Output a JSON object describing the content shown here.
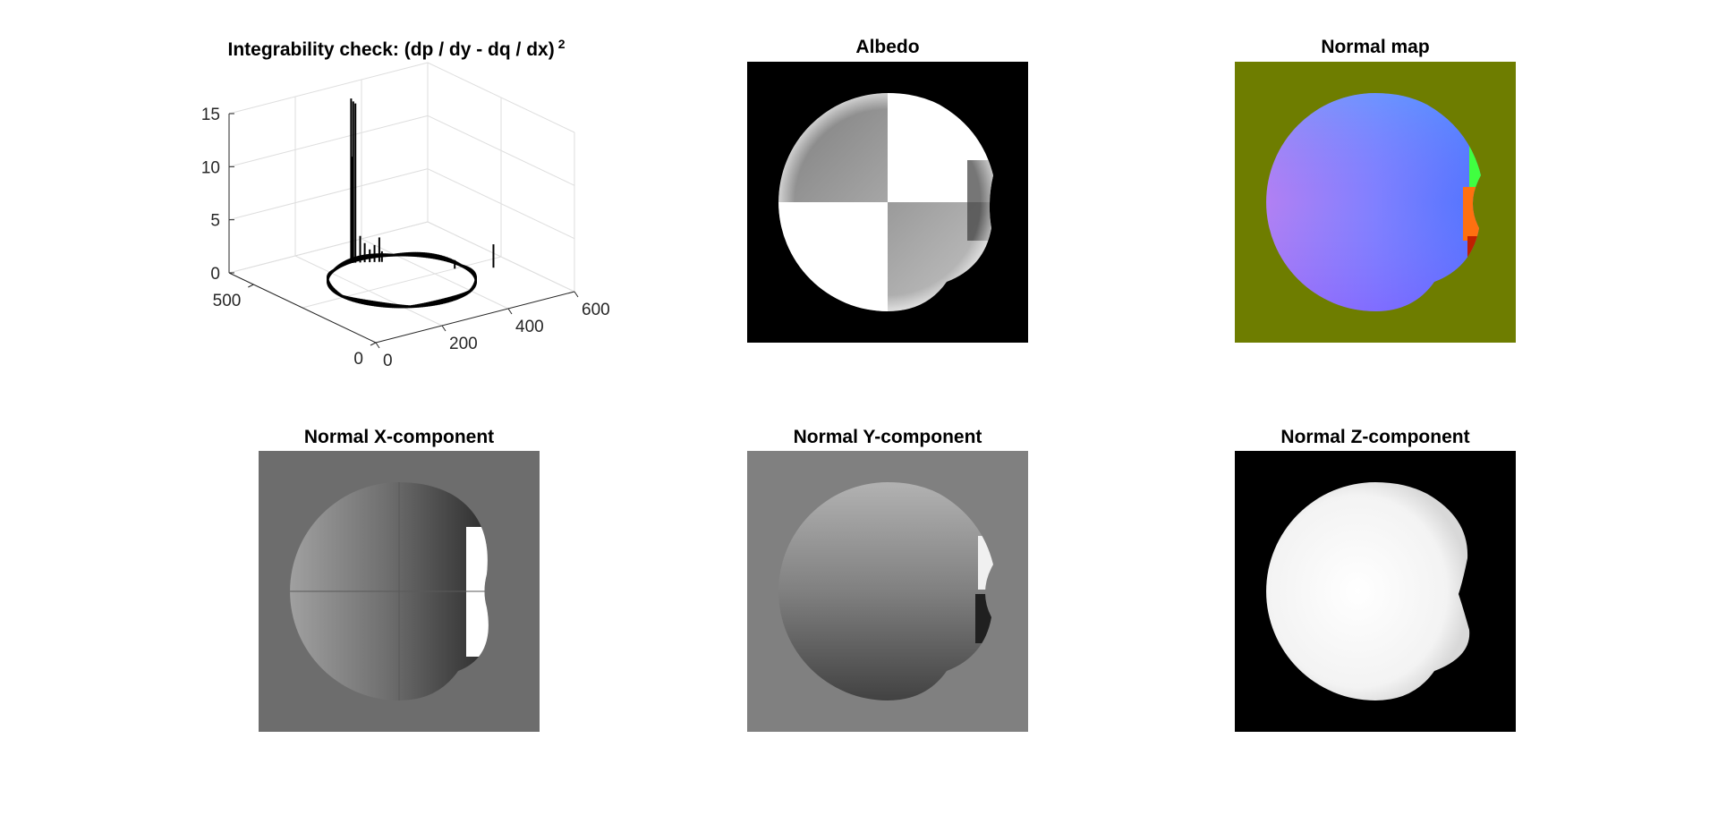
{
  "figure": {
    "panels": [
      {
        "id": "integrability",
        "title": "Integrability check: (dp / dy - dq / dx)",
        "title_superscript": "2"
      },
      {
        "id": "albedo",
        "title": "Albedo"
      },
      {
        "id": "normal_map",
        "title": "Normal map"
      },
      {
        "id": "normal_x",
        "title": "Normal X-component"
      },
      {
        "id": "normal_y",
        "title": "Normal Y-component"
      },
      {
        "id": "normal_z",
        "title": "Normal Z-component"
      }
    ]
  },
  "chart_data": {
    "type": "bar3",
    "title": "Integrability check: (dp / dy - dq / dx) 2",
    "xlabel": "",
    "ylabel": "",
    "zlabel": "",
    "x_ticks": [
      "0",
      "200",
      "400",
      "600"
    ],
    "y_ticks": [
      "0",
      "500"
    ],
    "z_ticks": [
      "0",
      "5",
      "10",
      "15"
    ],
    "xlim": [
      0,
      600
    ],
    "ylim": [
      0,
      600
    ],
    "zlim": [
      0,
      15
    ],
    "grid": true,
    "spikes": [
      {
        "x": 280,
        "y": 480,
        "z": 15.5
      },
      {
        "x": 285,
        "y": 478,
        "z": 15.2
      },
      {
        "x": 290,
        "y": 476,
        "z": 15.0
      },
      {
        "x": 283,
        "y": 479,
        "z": 10.0
      },
      {
        "x": 300,
        "y": 470,
        "z": 2.5
      },
      {
        "x": 310,
        "y": 465,
        "z": 1.8
      },
      {
        "x": 320,
        "y": 458,
        "z": 1.2
      },
      {
        "x": 330,
        "y": 452,
        "z": 1.6
      },
      {
        "x": 340,
        "y": 446,
        "z": 2.3
      },
      {
        "x": 345,
        "y": 442,
        "z": 1.0
      },
      {
        "x": 460,
        "y": 300,
        "z": 0.8
      },
      {
        "x": 540,
        "y": 250,
        "z": 2.2
      }
    ]
  },
  "colors": {
    "albedo_bg": "#000000",
    "normal_map_bg": "#6e7d00",
    "normal_x_bg": "#6d6d6d",
    "normal_y_bg": "#808080",
    "normal_z_bg": "#000000"
  }
}
